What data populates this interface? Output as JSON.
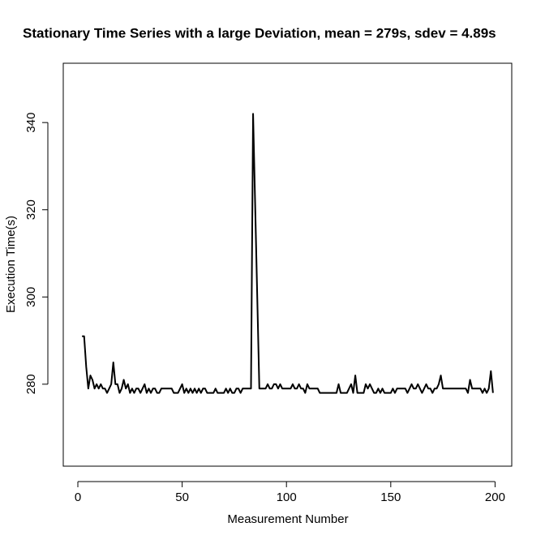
{
  "chart_data": {
    "type": "line",
    "title": "Stationary Time Series with a large Deviation, mean = 279s, sdev = 4.89s",
    "x_label": "Measurement Number",
    "y_label": "Execution Time(s)",
    "xlim": [
      -7,
      208
    ],
    "ylim": [
      261.2,
      353.6
    ],
    "xticks": [
      0,
      50,
      100,
      150,
      200
    ],
    "yticks": [
      280,
      300,
      320,
      340
    ],
    "color": "#000000",
    "x": [
      2,
      3,
      4,
      5,
      6,
      7,
      8,
      9,
      10,
      11,
      12,
      13,
      14,
      15,
      16,
      17,
      18,
      19,
      20,
      21,
      22,
      23,
      24,
      25,
      26,
      27,
      28,
      29,
      30,
      31,
      32,
      33,
      34,
      35,
      36,
      37,
      38,
      39,
      40,
      41,
      42,
      43,
      44,
      45,
      46,
      47,
      48,
      49,
      50,
      51,
      52,
      53,
      54,
      55,
      56,
      57,
      58,
      59,
      60,
      61,
      62,
      63,
      64,
      65,
      66,
      67,
      68,
      69,
      70,
      71,
      72,
      73,
      74,
      75,
      76,
      77,
      78,
      79,
      80,
      81,
      82,
      83,
      84,
      85,
      86,
      87,
      88,
      89,
      90,
      91,
      92,
      93,
      94,
      95,
      96,
      97,
      98,
      99,
      100,
      101,
      102,
      103,
      104,
      105,
      106,
      107,
      108,
      109,
      110,
      111,
      112,
      113,
      114,
      115,
      116,
      117,
      118,
      119,
      120,
      121,
      122,
      123,
      124,
      125,
      126,
      127,
      128,
      129,
      130,
      131,
      132,
      133,
      134,
      135,
      136,
      137,
      138,
      139,
      140,
      141,
      142,
      143,
      144,
      145,
      146,
      147,
      148,
      149,
      150,
      151,
      152,
      153,
      154,
      155,
      156,
      157,
      158,
      159,
      160,
      161,
      162,
      163,
      164,
      165,
      166,
      167,
      168,
      169,
      170,
      171,
      172,
      173,
      174,
      175,
      176,
      177,
      178,
      179,
      180,
      181,
      182,
      183,
      184,
      185,
      186,
      187,
      188,
      189,
      190,
      191,
      192,
      193,
      194,
      195,
      196,
      197,
      198,
      199
    ],
    "values": [
      291,
      291,
      284,
      279,
      282,
      281,
      279,
      280,
      279,
      280,
      279,
      279,
      278,
      279,
      280,
      285,
      280,
      280,
      278,
      279,
      281,
      279,
      280,
      278,
      279,
      278,
      279,
      279,
      278,
      279,
      280,
      278,
      279,
      278,
      279,
      279,
      278,
      278,
      279,
      279,
      279,
      279,
      279,
      279,
      278,
      278,
      278,
      279,
      280,
      278,
      279,
      278,
      279,
      278,
      279,
      278,
      279,
      278,
      279,
      279,
      278,
      278,
      278,
      278,
      279,
      278,
      278,
      278,
      278,
      279,
      278,
      279,
      278,
      278,
      279,
      279,
      278,
      279,
      279,
      279,
      279,
      279,
      342,
      321,
      300,
      279,
      279,
      279,
      279,
      280,
      279,
      279,
      280,
      280,
      279,
      280,
      279,
      279,
      279,
      279,
      279,
      280,
      279,
      279,
      280,
      279,
      279,
      278,
      280,
      279,
      279,
      279,
      279,
      279,
      278,
      278,
      278,
      278,
      278,
      278,
      278,
      278,
      278,
      280,
      278,
      278,
      278,
      278,
      279,
      280,
      278,
      282,
      278,
      278,
      278,
      278,
      280,
      279,
      280,
      279,
      278,
      278,
      279,
      278,
      279,
      278,
      278,
      278,
      278,
      279,
      278,
      279,
      279,
      279,
      279,
      279,
      278,
      279,
      280,
      279,
      279,
      280,
      279,
      278,
      279,
      280,
      279,
      279,
      278,
      279,
      279,
      280,
      282,
      279,
      279,
      279,
      279,
      279,
      279,
      279,
      279,
      279,
      279,
      279,
      279,
      278,
      281,
      279,
      279,
      279,
      279,
      279,
      278,
      279,
      278,
      279,
      283,
      278
    ]
  }
}
